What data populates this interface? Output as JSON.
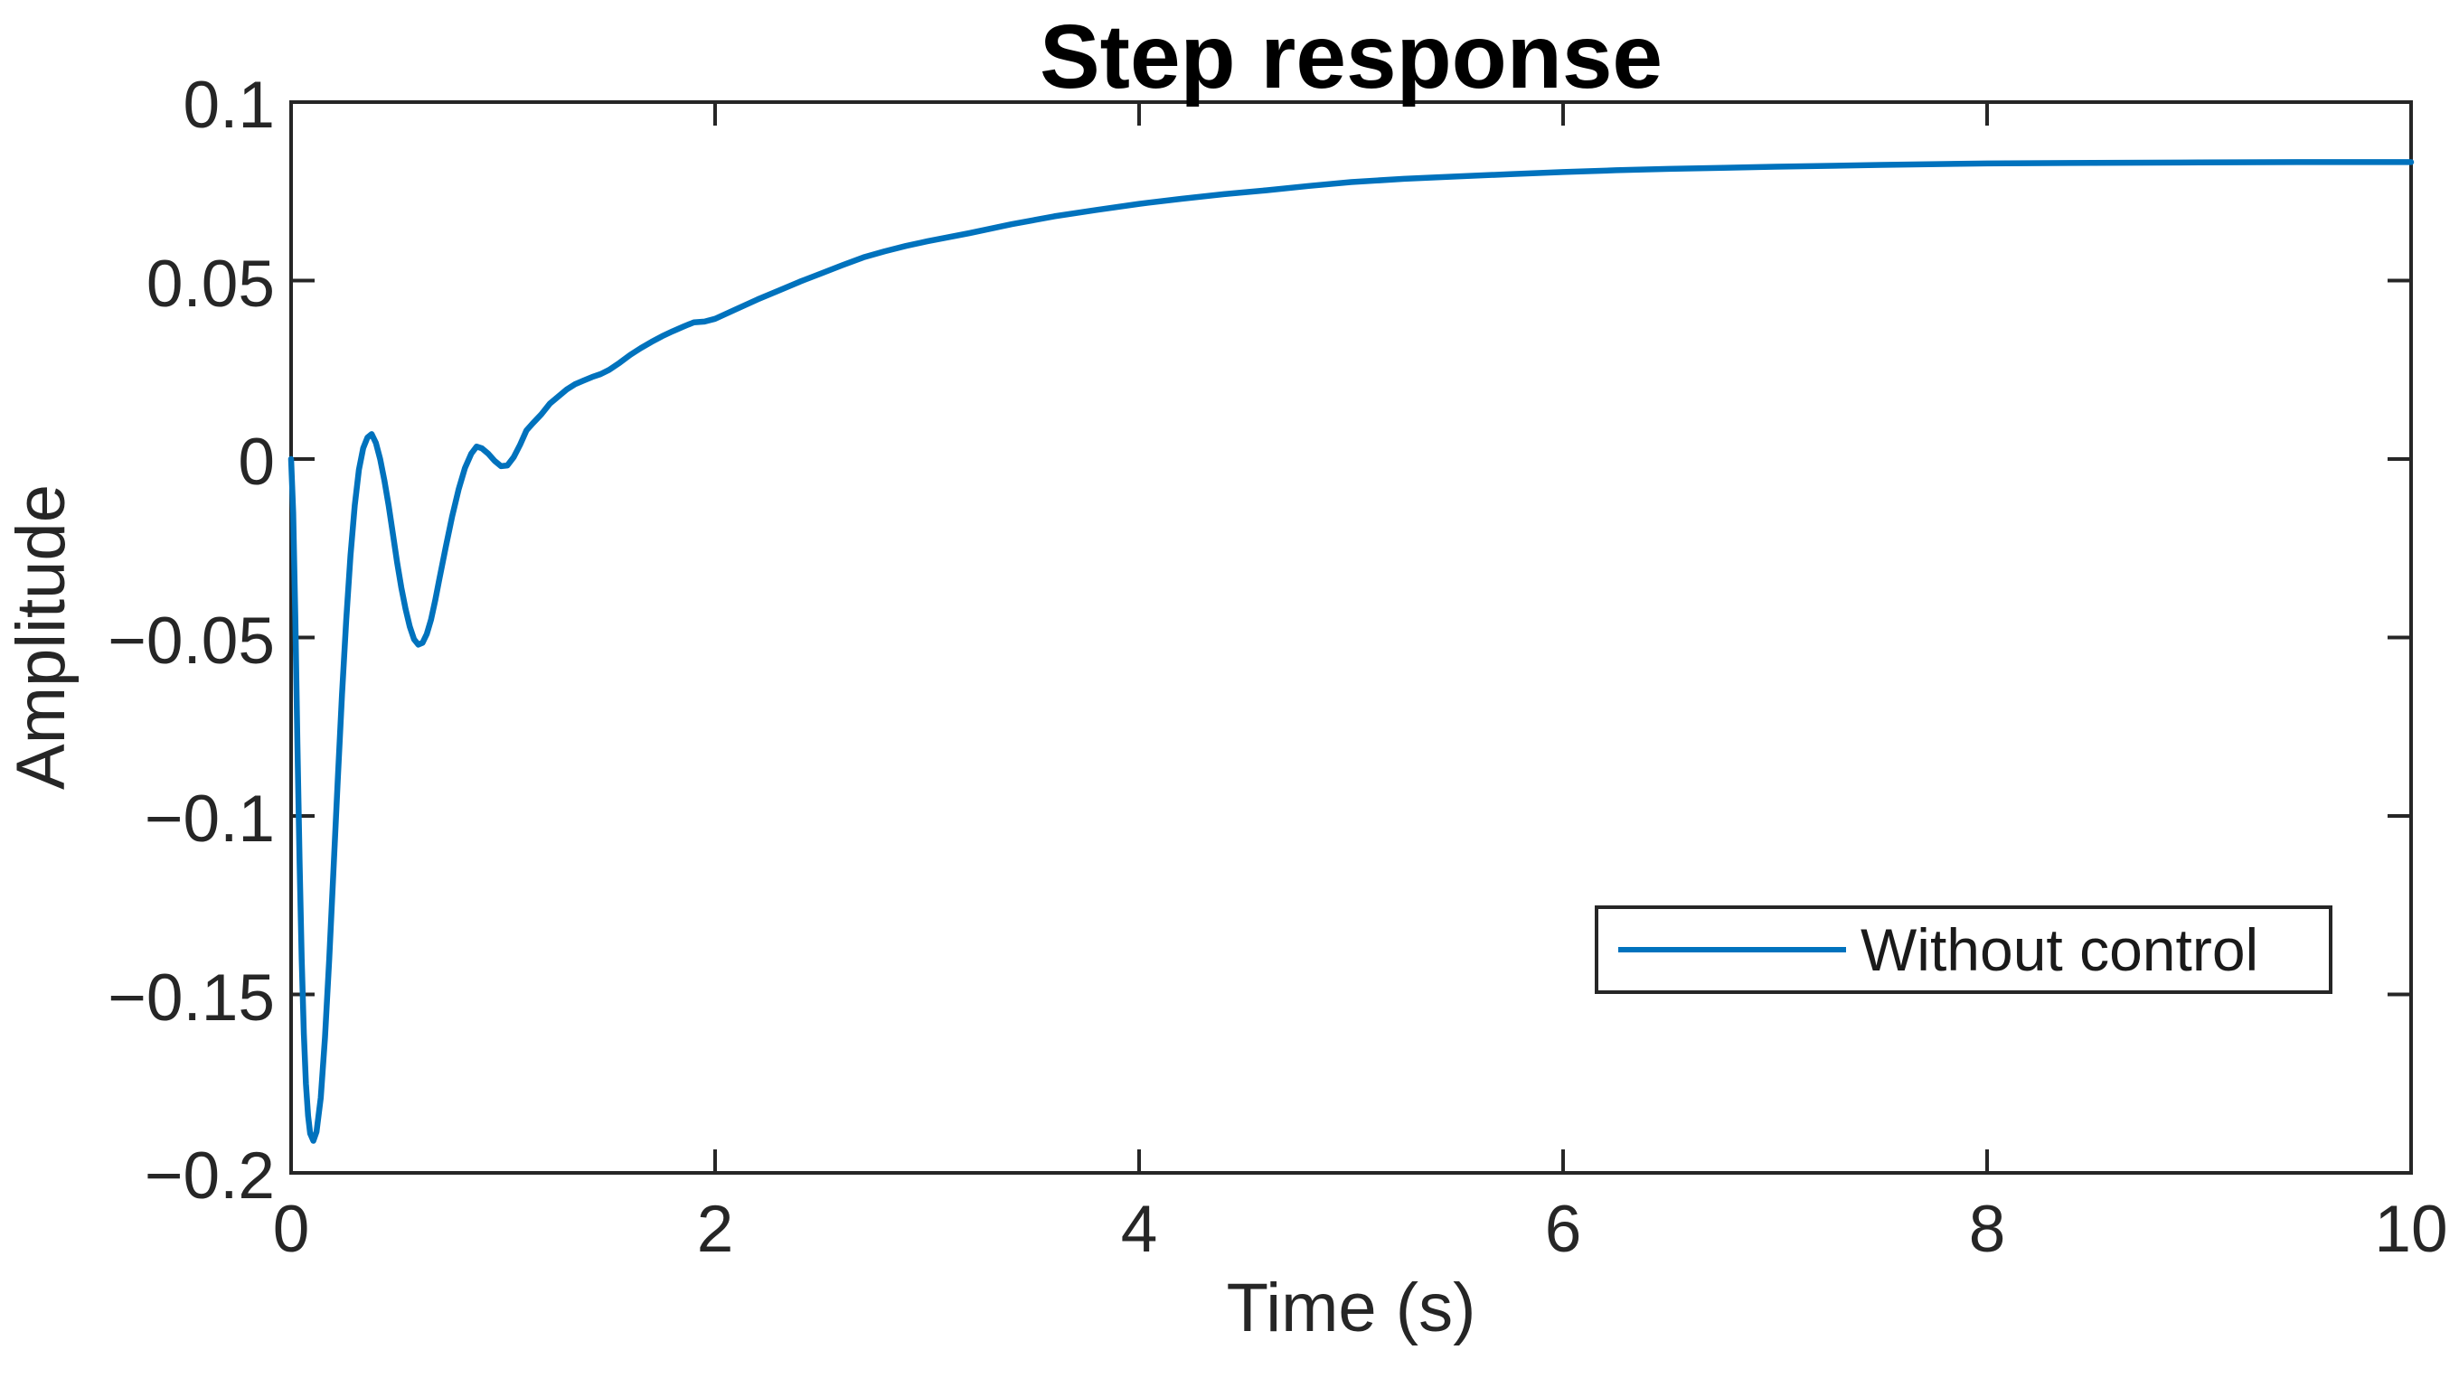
{
  "chart_data": {
    "type": "line",
    "title": "Step response",
    "xlabel": "Time (s)",
    "ylabel": "Amplitude",
    "xlim": [
      0,
      10
    ],
    "ylim": [
      -0.2,
      0.1
    ],
    "xticks": [
      0,
      2,
      4,
      6,
      8,
      10
    ],
    "xtick_labels": [
      "0",
      "2",
      "4",
      "6",
      "8",
      "10"
    ],
    "yticks": [
      -0.2,
      -0.15,
      -0.1,
      -0.05,
      0,
      0.05,
      0.1
    ],
    "ytick_labels": [
      "−0.2",
      "−0.15",
      "−0.1",
      "−0.05",
      "0",
      "0.05",
      "0.1"
    ],
    "grid": false,
    "legend_position": "bottom-right-inside",
    "series": [
      {
        "name": "Without control",
        "color": "#0072BD",
        "points": [
          [
            0,
            0
          ],
          [
            0.01,
            -0.015
          ],
          [
            0.02,
            -0.045
          ],
          [
            0.03,
            -0.08
          ],
          [
            0.04,
            -0.113
          ],
          [
            0.05,
            -0.14
          ],
          [
            0.06,
            -0.161
          ],
          [
            0.07,
            -0.175
          ],
          [
            0.08,
            -0.184
          ],
          [
            0.09,
            -0.189
          ],
          [
            0.105,
            -0.191
          ],
          [
            0.12,
            -0.1885
          ],
          [
            0.14,
            -0.179
          ],
          [
            0.16,
            -0.162
          ],
          [
            0.18,
            -0.14
          ],
          [
            0.2,
            -0.115
          ],
          [
            0.22,
            -0.09
          ],
          [
            0.24,
            -0.066
          ],
          [
            0.26,
            -0.045
          ],
          [
            0.28,
            -0.027
          ],
          [
            0.3,
            -0.013
          ],
          [
            0.32,
            -0.003
          ],
          [
            0.34,
            0.003
          ],
          [
            0.36,
            0.006
          ],
          [
            0.38,
            0.007
          ],
          [
            0.4,
            0.0045
          ],
          [
            0.42,
            0
          ],
          [
            0.44,
            -0.006
          ],
          [
            0.46,
            -0.013
          ],
          [
            0.48,
            -0.021
          ],
          [
            0.5,
            -0.029
          ],
          [
            0.52,
            -0.036
          ],
          [
            0.54,
            -0.042
          ],
          [
            0.56,
            -0.047
          ],
          [
            0.58,
            -0.0505
          ],
          [
            0.6,
            -0.052
          ],
          [
            0.62,
            -0.0515
          ],
          [
            0.64,
            -0.049
          ],
          [
            0.66,
            -0.045
          ],
          [
            0.68,
            -0.0395
          ],
          [
            0.7,
            -0.0335
          ],
          [
            0.73,
            -0.0245
          ],
          [
            0.76,
            -0.016
          ],
          [
            0.79,
            -0.0085
          ],
          [
            0.82,
            -0.0025
          ],
          [
            0.85,
            0.0015
          ],
          [
            0.875,
            0.0035
          ],
          [
            0.9,
            0.003
          ],
          [
            0.93,
            0.0015
          ],
          [
            0.96,
            -0.0005
          ],
          [
            0.99,
            -0.002
          ],
          [
            1.02,
            -0.0018
          ],
          [
            1.05,
            0.0005
          ],
          [
            1.08,
            0.004
          ],
          [
            1.11,
            0.008
          ],
          [
            1.14,
            0.01
          ],
          [
            1.18,
            0.0125
          ],
          [
            1.22,
            0.0155
          ],
          [
            1.26,
            0.0175
          ],
          [
            1.3,
            0.0195
          ],
          [
            1.34,
            0.021
          ],
          [
            1.38,
            0.022
          ],
          [
            1.42,
            0.023
          ],
          [
            1.46,
            0.0238
          ],
          [
            1.5,
            0.025
          ],
          [
            1.55,
            0.027
          ],
          [
            1.6,
            0.0292
          ],
          [
            1.65,
            0.0311
          ],
          [
            1.7,
            0.0328
          ],
          [
            1.75,
            0.0344
          ],
          [
            1.8,
            0.0358
          ],
          [
            1.85,
            0.0371
          ],
          [
            1.9,
            0.0383
          ],
          [
            1.95,
            0.0385
          ],
          [
            2,
            0.0393
          ],
          [
            2.1,
            0.042
          ],
          [
            2.2,
            0.0447
          ],
          [
            2.3,
            0.0472
          ],
          [
            2.4,
            0.0497
          ],
          [
            2.5,
            0.052
          ],
          [
            2.6,
            0.0543
          ],
          [
            2.7,
            0.0565
          ],
          [
            2.8,
            0.0582
          ],
          [
            2.9,
            0.0597
          ],
          [
            3,
            0.061
          ],
          [
            3.2,
            0.0633
          ],
          [
            3.4,
            0.0658
          ],
          [
            3.6,
            0.068
          ],
          [
            3.8,
            0.0698
          ],
          [
            4,
            0.0715
          ],
          [
            4.2,
            0.0729
          ],
          [
            4.4,
            0.0742
          ],
          [
            4.6,
            0.0753
          ],
          [
            4.8,
            0.0765
          ],
          [
            5,
            0.0776
          ],
          [
            5.25,
            0.0785
          ],
          [
            5.5,
            0.0792
          ],
          [
            5.75,
            0.0798
          ],
          [
            6,
            0.0804
          ],
          [
            6.25,
            0.0809
          ],
          [
            6.5,
            0.0813
          ],
          [
            6.75,
            0.0816
          ],
          [
            7,
            0.0819
          ],
          [
            7.5,
            0.0824
          ],
          [
            8,
            0.0828
          ],
          [
            8.5,
            0.083
          ],
          [
            9,
            0.0831
          ],
          [
            9.5,
            0.0832
          ],
          [
            10,
            0.0832
          ]
        ]
      }
    ]
  },
  "colors": {
    "line": "#0072BD",
    "axis": "#262626",
    "tick_label": "#262626",
    "title": "#000000",
    "legend_border": "#262626",
    "background": "#ffffff"
  }
}
